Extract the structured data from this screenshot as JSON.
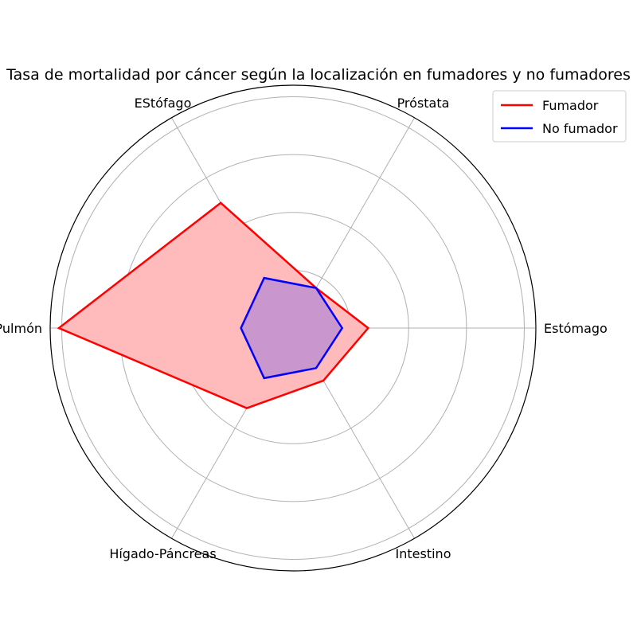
{
  "chart_data": {
    "type": "radar",
    "title": "Tasa de mortalidad por cáncer según la localización en fumadores y no fumadores",
    "categories": [
      "Estómago",
      "Próstata",
      "EStófago",
      "Pulmón",
      "Hígado-Páncreas",
      "Intestino"
    ],
    "rlim": [
      0,
      4.2
    ],
    "grid": true,
    "legend_position": "top-right",
    "series": [
      {
        "name": "Fumador",
        "values": [
          1.3,
          0.8,
          2.5,
          4.05,
          1.6,
          1.05
        ],
        "color": "#ff0000",
        "fill": "#ffbbbb"
      },
      {
        "name": "No fumador",
        "values": [
          0.85,
          0.8,
          1.0,
          0.9,
          1.0,
          0.8
        ],
        "color": "#0000ff",
        "fill": "#c090d0"
      }
    ]
  }
}
